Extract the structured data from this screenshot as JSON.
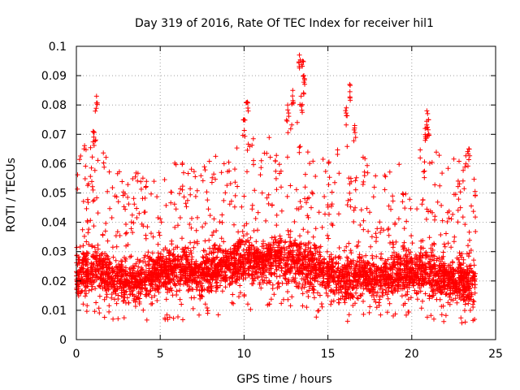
{
  "chart_data": {
    "type": "scatter",
    "title": "Day 319 of 2016, Rate Of TEC Index for receiver hil1",
    "xlabel": "GPS time / hours",
    "ylabel": "ROTI / TECUs",
    "xlim": [
      0,
      25
    ],
    "ylim": [
      0,
      0.1
    ],
    "xticks": [
      0,
      5,
      10,
      15,
      20,
      25
    ],
    "xtick_labels": [
      "0",
      "5",
      "10",
      "15",
      "20",
      "25"
    ],
    "yticks": [
      0,
      0.01,
      0.02,
      0.03,
      0.04,
      0.05,
      0.06,
      0.07,
      0.08,
      0.09,
      0.1
    ],
    "ytick_labels": [
      "0",
      "0.01",
      "0.02",
      "0.03",
      "0.04",
      "0.05",
      "0.06",
      "0.07",
      "0.08",
      "0.09",
      "0.1"
    ],
    "grid": true,
    "marker": "+",
    "marker_color": "#ff0000",
    "series": [
      {
        "name": "ROTI",
        "x_range": [
          0,
          23.8
        ],
        "notes": "dense cloud of points; visible envelope and spikes listed below",
        "envelope": {
          "x": [
            0,
            1,
            2,
            3,
            4,
            5,
            6,
            7,
            8,
            9,
            10,
            11,
            12,
            13,
            14,
            15,
            16,
            17,
            18,
            19,
            20,
            21,
            22,
            23,
            23.8
          ],
          "upper": [
            0.065,
            0.07,
            0.06,
            0.056,
            0.058,
            0.06,
            0.063,
            0.058,
            0.063,
            0.062,
            0.072,
            0.066,
            0.072,
            0.079,
            0.065,
            0.062,
            0.07,
            0.064,
            0.058,
            0.06,
            0.062,
            0.07,
            0.06,
            0.064,
            0.06
          ],
          "lower": [
            0.012,
            0.007,
            0.007,
            0.006,
            0.006,
            0.006,
            0.006,
            0.008,
            0.008,
            0.008,
            0.009,
            0.01,
            0.01,
            0.01,
            0.008,
            0.006,
            0.004,
            0.006,
            0.007,
            0.008,
            0.008,
            0.007,
            0.005,
            0.005,
            0.004
          ],
          "center": [
            0.022,
            0.024,
            0.022,
            0.02,
            0.02,
            0.024,
            0.025,
            0.022,
            0.024,
            0.025,
            0.027,
            0.026,
            0.028,
            0.027,
            0.025,
            0.023,
            0.021,
            0.022,
            0.021,
            0.022,
            0.023,
            0.024,
            0.02,
            0.02,
            0.018
          ]
        },
        "spikes": [
          {
            "x": 1.2,
            "y": 0.083
          },
          {
            "x": 1.0,
            "y": 0.071
          },
          {
            "x": 10.2,
            "y": 0.081
          },
          {
            "x": 10.0,
            "y": 0.075
          },
          {
            "x": 12.6,
            "y": 0.08
          },
          {
            "x": 12.9,
            "y": 0.085
          },
          {
            "x": 13.3,
            "y": 0.097
          },
          {
            "x": 13.5,
            "y": 0.095
          },
          {
            "x": 13.6,
            "y": 0.089
          },
          {
            "x": 13.4,
            "y": 0.083
          },
          {
            "x": 16.3,
            "y": 0.087
          },
          {
            "x": 16.1,
            "y": 0.079
          },
          {
            "x": 16.6,
            "y": 0.073
          },
          {
            "x": 20.9,
            "y": 0.078
          },
          {
            "x": 21.0,
            "y": 0.075
          },
          {
            "x": 20.8,
            "y": 0.072
          },
          {
            "x": 23.4,
            "y": 0.065
          }
        ]
      }
    ]
  }
}
